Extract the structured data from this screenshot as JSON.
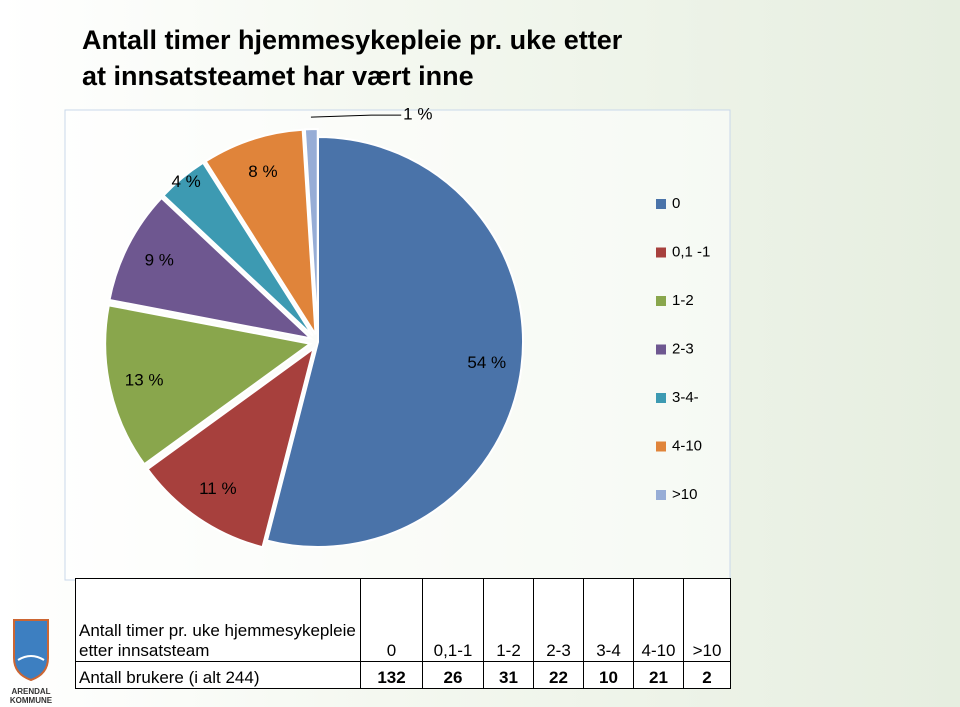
{
  "chart_data": {
    "type": "pie",
    "title": "Antall timer hjemmesykepleie pr. uke etter at innsatsteamet har vært inne",
    "categories": [
      "0",
      "0,1 -1",
      "1-2",
      "2-3",
      "3-4-",
      "4-10",
      ">10"
    ],
    "values": [
      54,
      11,
      13,
      9,
      4,
      8,
      1
    ],
    "value_labels": [
      "54 %",
      "11 %",
      "13 %",
      "9 %",
      "4 %",
      "8 %",
      "1 %"
    ],
    "colors": [
      "#4a73a9",
      "#a7403d",
      "#89a64c",
      "#6e5790",
      "#3d9ab2",
      "#e0843a",
      "#97add6"
    ],
    "legend": "right"
  },
  "table": {
    "header": [
      "Antall timer pr. uke hjemmesykepleie etter innsatsteam",
      "0",
      "0,1-1",
      "1-2",
      "2-3",
      "3-4",
      "4-10",
      ">10"
    ],
    "rows": [
      [
        "Antall brukere (i alt 244)",
        "132",
        "26",
        "31",
        "22",
        "10",
        "21",
        "2"
      ]
    ]
  },
  "logo_text": [
    "ARENDAL",
    "KOMMUNE"
  ]
}
